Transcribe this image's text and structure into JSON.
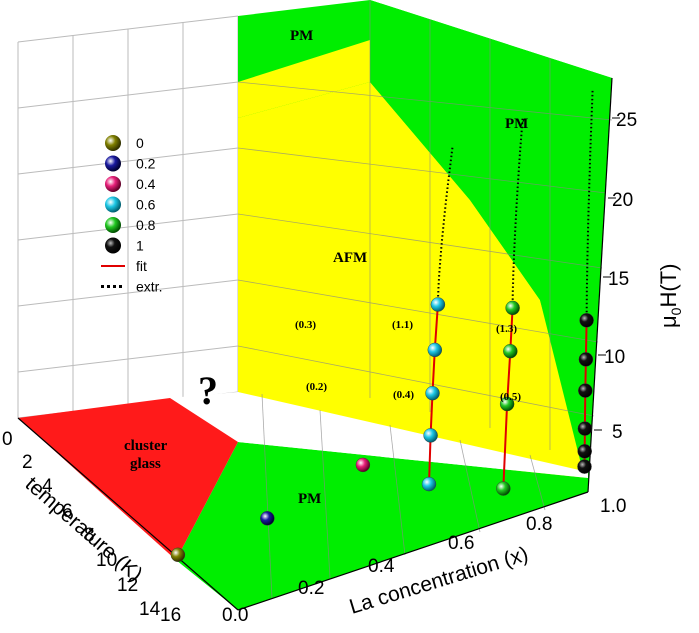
{
  "chart_data": {
    "type": "scatter",
    "projection": "3d",
    "axes": {
      "x": {
        "label": "La concentration (x)",
        "ticks": [
          "0.0",
          "0.2",
          "0.4",
          "0.6",
          "0.8",
          "1.0"
        ],
        "range": [
          0,
          1
        ]
      },
      "y": {
        "label": "temperature (K)",
        "ticks": [
          "0",
          "2",
          "4",
          "6",
          "8",
          "10",
          "12",
          "14",
          "16"
        ],
        "range": [
          0,
          16
        ]
      },
      "z": {
        "label_prefix": "μ",
        "label_sub": "0",
        "label_suffix": "H(T)",
        "ticks": [
          "5",
          "10",
          "15",
          "20",
          "25"
        ],
        "range": [
          1,
          26
        ]
      }
    },
    "series": [
      {
        "name": "0",
        "color": "#808000",
        "points": [
          {
            "x": 0.0,
            "T": 15.5,
            "H": 1.0
          }
        ]
      },
      {
        "name": "0.2",
        "color": "#1a1aa0",
        "points": [
          {
            "x": 0.2,
            "T": 10.5,
            "H": 1.0
          }
        ]
      },
      {
        "name": "0.4",
        "color": "#e8207a",
        "points": [
          {
            "x": 0.4,
            "T": 3.9,
            "H": 1.0
          }
        ]
      },
      {
        "name": "0.6",
        "color": "#1ec8e6",
        "points": [
          {
            "x": 0.6,
            "T": 4.9,
            "H": 1.5
          },
          {
            "x": 0.6,
            "T": 4.5,
            "H": 4.5
          },
          {
            "x": 0.6,
            "T": 4.0,
            "H": 7.0
          },
          {
            "x": 0.6,
            "T": 3.4,
            "H": 9.5
          },
          {
            "x": 0.6,
            "T": 2.6,
            "H": 12.0
          }
        ]
      },
      {
        "name": "0.8",
        "color": "#22c822",
        "points": [
          {
            "x": 0.8,
            "T": 3.8,
            "H": 1.5
          },
          {
            "x": 0.8,
            "T": 2.8,
            "H": 6.5
          },
          {
            "x": 0.8,
            "T": 2.0,
            "H": 9.5
          },
          {
            "x": 0.8,
            "T": 1.4,
            "H": 12.0
          }
        ]
      },
      {
        "name": "1",
        "color": "#111111",
        "points": [
          {
            "x": 1.0,
            "T": 0.9,
            "H": 2.0
          },
          {
            "x": 1.0,
            "T": 0.85,
            "H": 3.0
          },
          {
            "x": 1.0,
            "T": 0.8,
            "H": 4.5
          },
          {
            "x": 1.0,
            "T": 0.7,
            "H": 7.0
          },
          {
            "x": 1.0,
            "T": 0.55,
            "H": 9.0
          },
          {
            "x": 1.0,
            "T": 0.35,
            "H": 11.5
          }
        ]
      }
    ],
    "legend": {
      "position": "upper-left",
      "entries": [
        {
          "label": "0",
          "kind": "sphere",
          "color": "#808000"
        },
        {
          "label": "0.2",
          "kind": "sphere",
          "color": "#1a1aa0"
        },
        {
          "label": "0.4",
          "kind": "sphere",
          "color": "#e8207a"
        },
        {
          "label": "0.6",
          "kind": "sphere",
          "color": "#1ec8e6"
        },
        {
          "label": "0.8",
          "kind": "sphere",
          "color": "#22c822"
        },
        {
          "label": "1",
          "kind": "sphere",
          "color": "#111111"
        },
        {
          "label": "fit",
          "kind": "line",
          "color": "#e00000"
        },
        {
          "label": "extr.",
          "kind": "dots",
          "color": "#000000"
        }
      ]
    },
    "regions": {
      "pm_floor": "PM",
      "pm_back_top": "PM",
      "pm_right": "PM",
      "afm": "AFM",
      "cluster_glass_line1": "cluster",
      "cluster_glass_line2": "glass",
      "unknown": "?"
    },
    "region_colors": {
      "pm": "#00ee00",
      "afm": "#ffff00",
      "cluster_glass": "#ff1a1a"
    },
    "point_labels": [
      "(0.3)",
      "(0.2)",
      "(1.1)",
      "(0.4)",
      "(1.3)",
      "(0.5)"
    ],
    "grid": true
  }
}
